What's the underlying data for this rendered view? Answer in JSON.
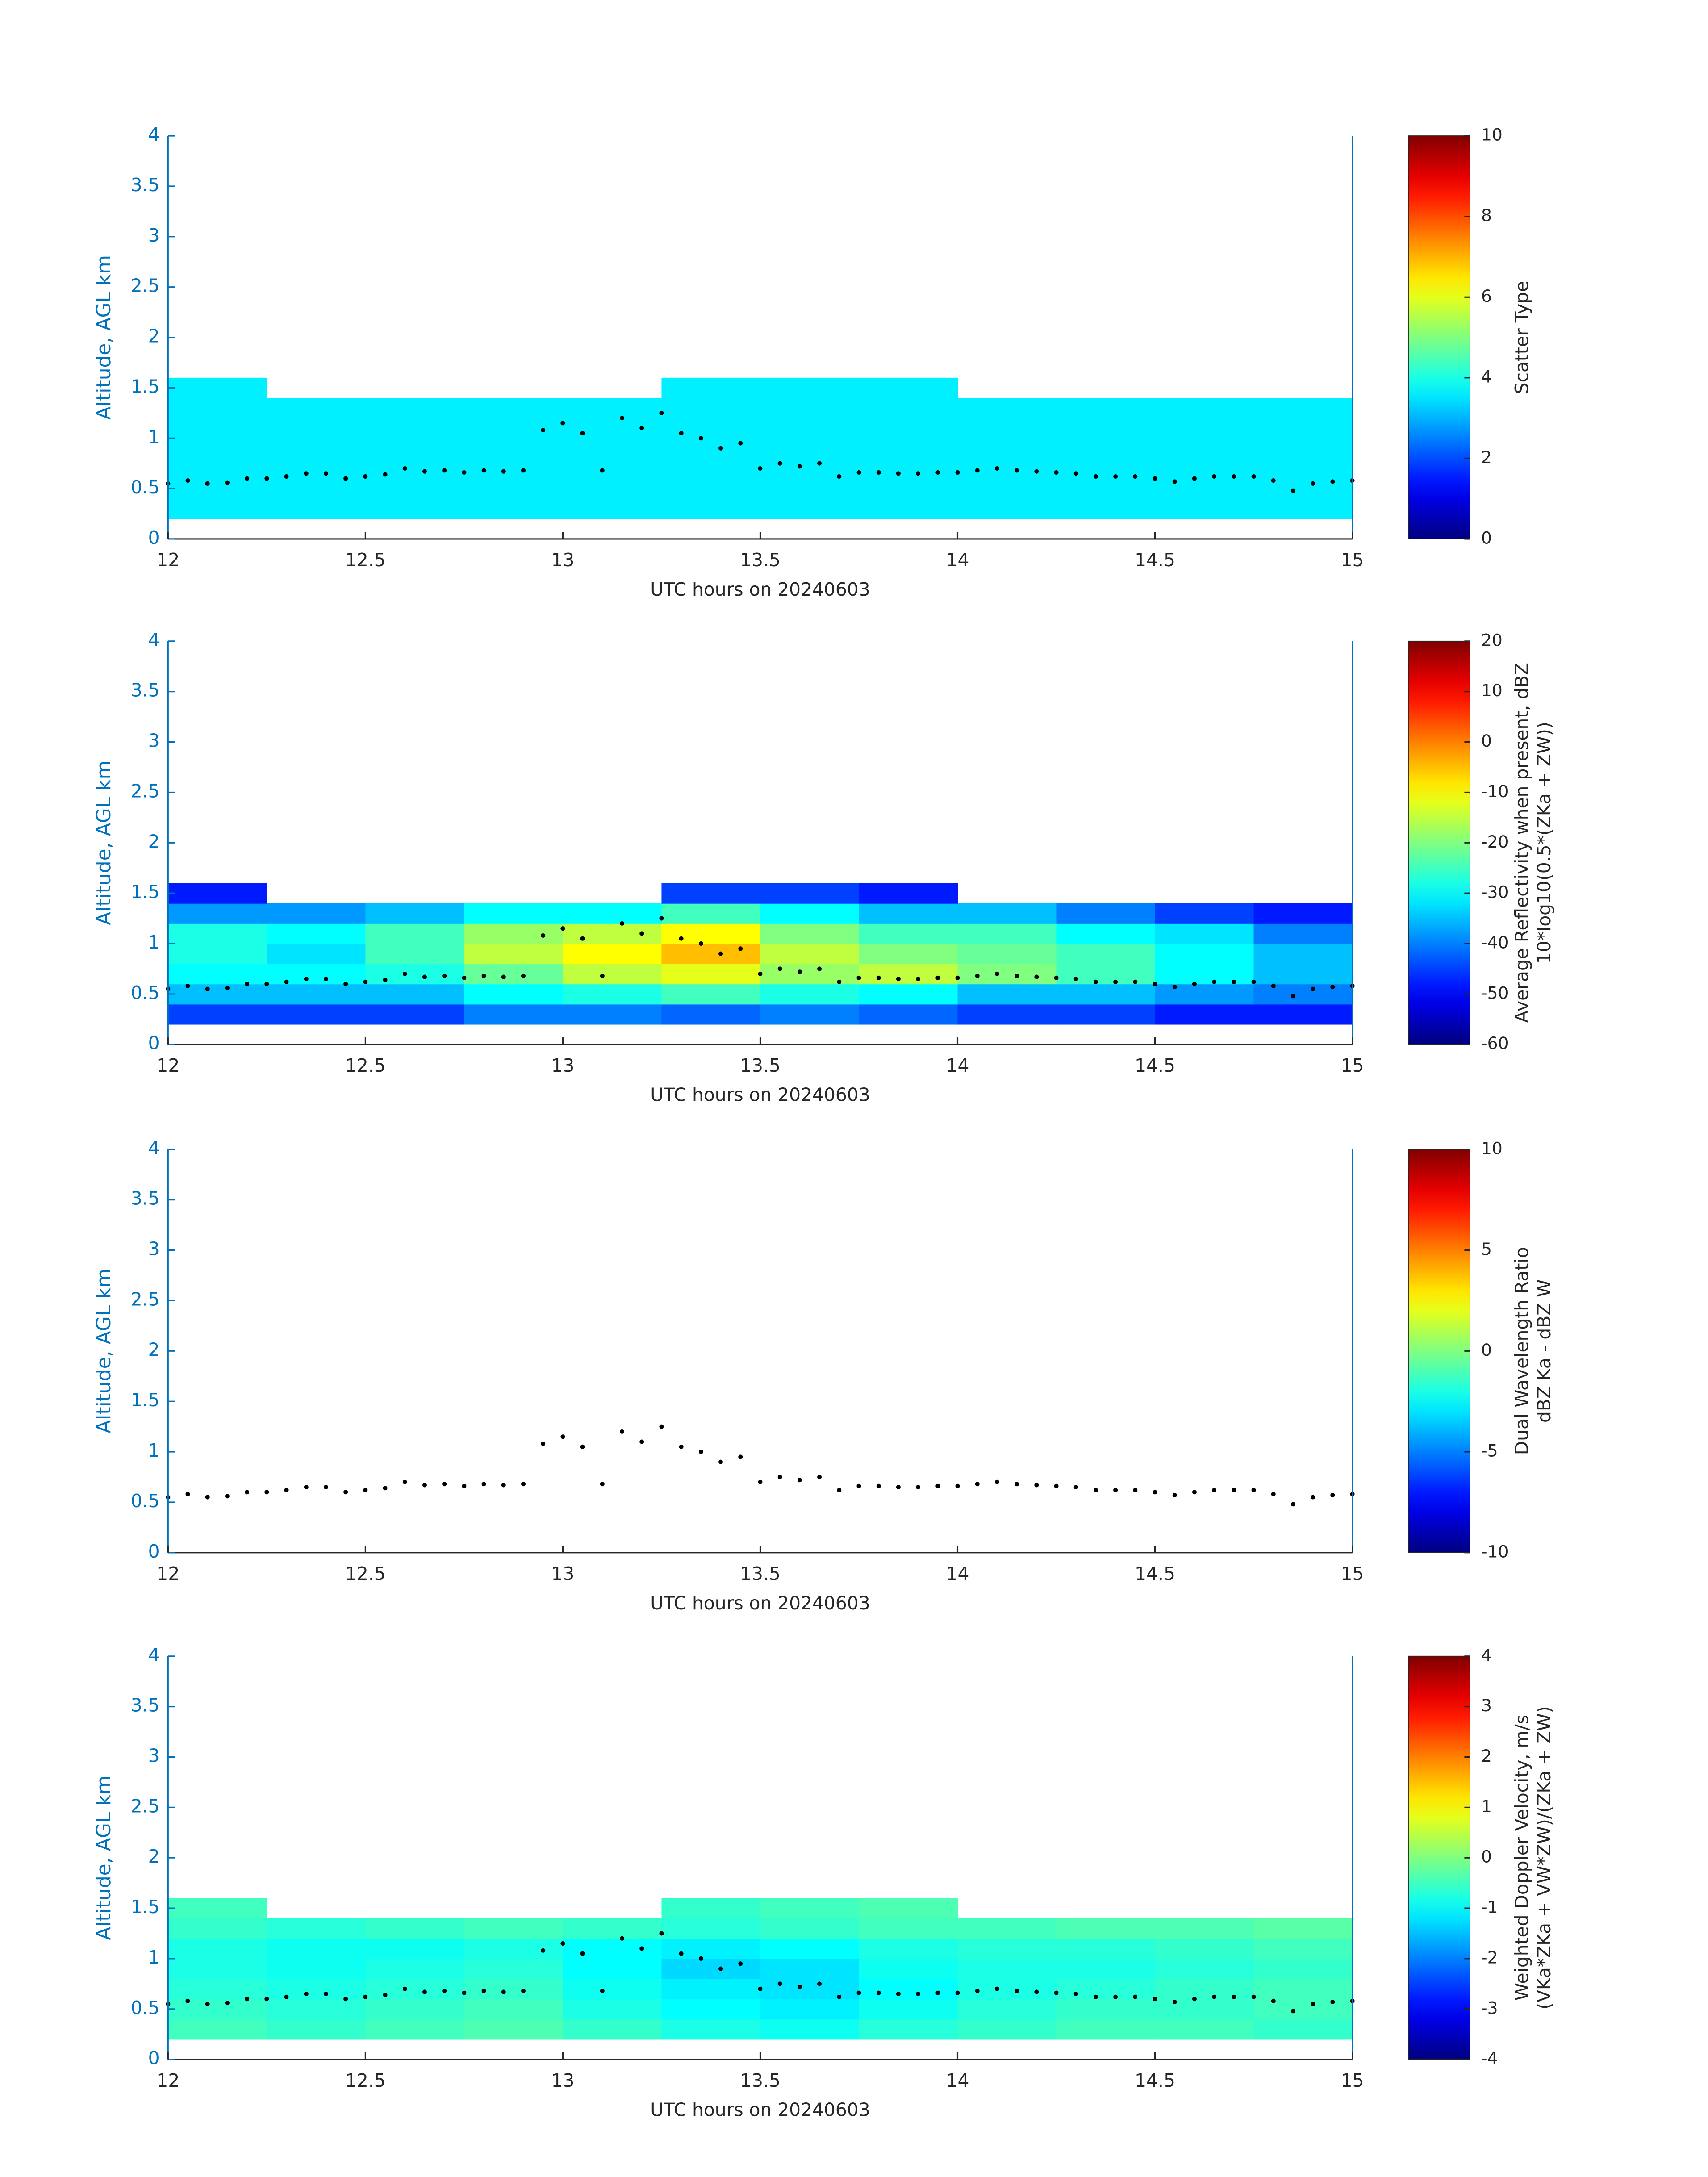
{
  "chart_data": [
    {
      "type": "heatmap",
      "xlabel": "UTC hours on 20240603",
      "ylabel": "Altitude, AGL km",
      "xlim": [
        12,
        15
      ],
      "xticks": [
        12,
        12.5,
        13,
        13.5,
        14,
        14.5,
        15
      ],
      "ylim": [
        0,
        4
      ],
      "yticks": [
        0,
        0.5,
        1,
        1.5,
        2,
        2.5,
        3,
        3.5,
        4
      ],
      "x_edges": [
        12,
        12.25,
        12.5,
        12.75,
        13,
        13.25,
        13.5,
        13.75,
        14,
        14.25,
        14.5,
        14.75,
        15
      ],
      "y_edges": [
        0.2,
        0.4,
        0.6,
        0.8,
        1.0,
        1.2,
        1.4,
        1.6
      ],
      "z": [
        [
          3.6,
          3.6,
          3.6,
          3.6,
          3.6,
          3.6,
          3.6,
          3.6,
          3.6,
          3.6,
          3.6,
          3.6
        ],
        [
          3.6,
          3.6,
          3.6,
          3.6,
          3.6,
          3.6,
          3.6,
          3.6,
          3.6,
          3.6,
          3.6,
          3.6
        ],
        [
          3.6,
          3.6,
          3.6,
          3.6,
          3.6,
          3.6,
          3.6,
          3.6,
          3.6,
          3.6,
          3.6,
          3.6
        ],
        [
          3.6,
          3.6,
          3.6,
          3.6,
          3.6,
          3.6,
          3.6,
          3.6,
          3.6,
          3.6,
          3.6,
          3.6
        ],
        [
          3.6,
          3.6,
          3.6,
          3.6,
          3.6,
          3.6,
          3.6,
          3.6,
          3.6,
          3.6,
          3.6,
          3.6
        ],
        [
          3.6,
          3.6,
          3.6,
          3.6,
          3.6,
          3.6,
          3.6,
          3.6,
          3.6,
          3.6,
          3.6,
          3.6
        ],
        [
          3.6,
          null,
          null,
          null,
          null,
          3.6,
          3.6,
          3.6,
          null,
          null,
          null,
          null
        ]
      ],
      "points": {
        "x": [
          12,
          12.05,
          12.1,
          12.15,
          12.2,
          12.25,
          12.3,
          12.35,
          12.4,
          12.45,
          12.5,
          12.55,
          12.6,
          12.65,
          12.7,
          12.75,
          12.8,
          12.85,
          12.9,
          12.95,
          13,
          13.05,
          13.1,
          13.15,
          13.2,
          13.25,
          13.3,
          13.35,
          13.4,
          13.45,
          13.5,
          13.55,
          13.6,
          13.65,
          13.7,
          13.75,
          13.8,
          13.85,
          13.9,
          13.95,
          14,
          14.05,
          14.1,
          14.15,
          14.2,
          14.25,
          14.3,
          14.35,
          14.4,
          14.45,
          14.5,
          14.55,
          14.6,
          14.65,
          14.7,
          14.75,
          14.8,
          14.85,
          14.9,
          14.95,
          15
        ],
        "values": [
          0.55,
          0.58,
          0.55,
          0.56,
          0.6,
          0.6,
          0.62,
          0.65,
          0.65,
          0.6,
          0.62,
          0.64,
          0.7,
          0.67,
          0.68,
          0.66,
          0.68,
          0.67,
          0.68,
          1.08,
          1.15,
          1.05,
          0.68,
          1.2,
          1.1,
          1.25,
          1.05,
          1.0,
          0.9,
          0.95,
          0.7,
          0.75,
          0.72,
          0.75,
          0.62,
          0.66,
          0.66,
          0.65,
          0.65,
          0.66,
          0.66,
          0.68,
          0.7,
          0.68,
          0.67,
          0.66,
          0.65,
          0.62,
          0.62,
          0.62,
          0.6,
          0.57,
          0.6,
          0.62,
          0.62,
          0.62,
          0.58,
          0.48,
          0.55,
          0.57,
          0.58
        ]
      },
      "colorbar": {
        "label": [
          "Scatter Type"
        ],
        "lim": [
          0,
          10
        ],
        "ticks": [
          0,
          2,
          4,
          6,
          8,
          10
        ]
      }
    },
    {
      "type": "heatmap",
      "xlabel": "UTC hours on 20240603",
      "ylabel": "Altitude, AGL km",
      "xlim": [
        12,
        15
      ],
      "xticks": [
        12,
        12.5,
        13,
        13.5,
        14,
        14.5,
        15
      ],
      "ylim": [
        0,
        4
      ],
      "yticks": [
        0,
        0.5,
        1,
        1.5,
        2,
        2.5,
        3,
        3.5,
        4
      ],
      "x_edges": [
        12,
        12.25,
        12.5,
        12.75,
        13,
        13.25,
        13.5,
        13.75,
        14,
        14.25,
        14.5,
        14.75,
        15
      ],
      "y_edges": [
        0.2,
        0.4,
        0.6,
        0.8,
        1.0,
        1.2,
        1.4,
        1.6
      ],
      "z": [
        [
          -45,
          -45,
          -45,
          -40,
          -40,
          -42,
          -40,
          -42,
          -45,
          -45,
          -48,
          -48
        ],
        [
          -35,
          -35,
          -35,
          -30,
          -28,
          -25,
          -28,
          -30,
          -35,
          -35,
          -38,
          -40
        ],
        [
          -30,
          -30,
          -28,
          -22,
          -15,
          -12,
          -18,
          -15,
          -20,
          -25,
          -30,
          -35
        ],
        [
          -28,
          -32,
          -25,
          -15,
          -10,
          -5,
          -15,
          -20,
          -22,
          -25,
          -30,
          -35
        ],
        [
          -28,
          -30,
          -25,
          -18,
          -15,
          -10,
          -20,
          -25,
          -25,
          -30,
          -32,
          -40
        ],
        [
          -38,
          -38,
          -35,
          -30,
          -30,
          -25,
          -30,
          -35,
          -35,
          -40,
          -45,
          -48
        ],
        [
          -48,
          null,
          null,
          null,
          null,
          -45,
          -45,
          -48,
          null,
          null,
          null,
          null
        ]
      ],
      "points": {
        "x": [
          12,
          12.05,
          12.1,
          12.15,
          12.2,
          12.25,
          12.3,
          12.35,
          12.4,
          12.45,
          12.5,
          12.55,
          12.6,
          12.65,
          12.7,
          12.75,
          12.8,
          12.85,
          12.9,
          12.95,
          13,
          13.05,
          13.1,
          13.15,
          13.2,
          13.25,
          13.3,
          13.35,
          13.4,
          13.45,
          13.5,
          13.55,
          13.6,
          13.65,
          13.7,
          13.75,
          13.8,
          13.85,
          13.9,
          13.95,
          14,
          14.05,
          14.1,
          14.15,
          14.2,
          14.25,
          14.3,
          14.35,
          14.4,
          14.45,
          14.5,
          14.55,
          14.6,
          14.65,
          14.7,
          14.75,
          14.8,
          14.85,
          14.9,
          14.95,
          15
        ],
        "values": [
          0.55,
          0.58,
          0.55,
          0.56,
          0.6,
          0.6,
          0.62,
          0.65,
          0.65,
          0.6,
          0.62,
          0.64,
          0.7,
          0.67,
          0.68,
          0.66,
          0.68,
          0.67,
          0.68,
          1.08,
          1.15,
          1.05,
          0.68,
          1.2,
          1.1,
          1.25,
          1.05,
          1.0,
          0.9,
          0.95,
          0.7,
          0.75,
          0.72,
          0.75,
          0.62,
          0.66,
          0.66,
          0.65,
          0.65,
          0.66,
          0.66,
          0.68,
          0.7,
          0.68,
          0.67,
          0.66,
          0.65,
          0.62,
          0.62,
          0.62,
          0.6,
          0.57,
          0.6,
          0.62,
          0.62,
          0.62,
          0.58,
          0.48,
          0.55,
          0.57,
          0.58
        ]
      },
      "colorbar": {
        "label": [
          "Average Reflectivity when present, dBZ",
          "10*log10(0.5*(ZKa + ZW))"
        ],
        "lim": [
          -60,
          20
        ],
        "ticks": [
          -60,
          -50,
          -40,
          -30,
          -20,
          -10,
          0,
          10,
          20
        ]
      }
    },
    {
      "type": "heatmap",
      "xlabel": "UTC hours on 20240603",
      "ylabel": "Altitude, AGL km",
      "xlim": [
        12,
        15
      ],
      "xticks": [
        12,
        12.5,
        13,
        13.5,
        14,
        14.5,
        15
      ],
      "ylim": [
        0,
        4
      ],
      "yticks": [
        0,
        0.5,
        1,
        1.5,
        2,
        2.5,
        3,
        3.5,
        4
      ],
      "points": {
        "x": [
          12,
          12.05,
          12.1,
          12.15,
          12.2,
          12.25,
          12.3,
          12.35,
          12.4,
          12.45,
          12.5,
          12.55,
          12.6,
          12.65,
          12.7,
          12.75,
          12.8,
          12.85,
          12.9,
          12.95,
          13,
          13.05,
          13.1,
          13.15,
          13.2,
          13.25,
          13.3,
          13.35,
          13.4,
          13.45,
          13.5,
          13.55,
          13.6,
          13.65,
          13.7,
          13.75,
          13.8,
          13.85,
          13.9,
          13.95,
          14,
          14.05,
          14.1,
          14.15,
          14.2,
          14.25,
          14.3,
          14.35,
          14.4,
          14.45,
          14.5,
          14.55,
          14.6,
          14.65,
          14.7,
          14.75,
          14.8,
          14.85,
          14.9,
          14.95,
          15
        ],
        "values": [
          0.55,
          0.58,
          0.55,
          0.56,
          0.6,
          0.6,
          0.62,
          0.65,
          0.65,
          0.6,
          0.62,
          0.64,
          0.7,
          0.67,
          0.68,
          0.66,
          0.68,
          0.67,
          0.68,
          1.08,
          1.15,
          1.05,
          0.68,
          1.2,
          1.1,
          1.25,
          1.05,
          1.0,
          0.9,
          0.95,
          0.7,
          0.75,
          0.72,
          0.75,
          0.62,
          0.66,
          0.66,
          0.65,
          0.65,
          0.66,
          0.66,
          0.68,
          0.7,
          0.68,
          0.67,
          0.66,
          0.65,
          0.62,
          0.62,
          0.62,
          0.6,
          0.57,
          0.6,
          0.62,
          0.62,
          0.62,
          0.58,
          0.48,
          0.55,
          0.57,
          0.58
        ]
      },
      "colorbar": {
        "label": [
          "Dual Wavelength Ratio",
          "dBZ Ka - dBZ W"
        ],
        "lim": [
          -10,
          10
        ],
        "ticks": [
          -10,
          -5,
          0,
          5,
          10
        ]
      }
    },
    {
      "type": "heatmap",
      "xlabel": "UTC hours on 20240603",
      "ylabel": "Altitude, AGL km",
      "xlim": [
        12,
        15
      ],
      "xticks": [
        12,
        12.5,
        13,
        13.5,
        14,
        14.5,
        15
      ],
      "ylim": [
        0,
        4
      ],
      "yticks": [
        0,
        0.5,
        1,
        1.5,
        2,
        2.5,
        3,
        3.5,
        4
      ],
      "x_edges": [
        12,
        12.25,
        12.5,
        12.75,
        13,
        13.25,
        13.5,
        13.75,
        14,
        14.25,
        14.5,
        14.75,
        15
      ],
      "y_edges": [
        0.2,
        0.4,
        0.6,
        0.8,
        1.0,
        1.2,
        1.4,
        1.6
      ],
      "z": [
        [
          -0.5,
          -0.6,
          -0.5,
          -0.4,
          -0.6,
          -0.8,
          -0.9,
          -0.7,
          -0.6,
          -0.5,
          -0.5,
          -0.6
        ],
        [
          -0.6,
          -0.7,
          -0.6,
          -0.5,
          -0.8,
          -1.0,
          -1.1,
          -0.9,
          -0.7,
          -0.6,
          -0.6,
          -0.5
        ],
        [
          -0.7,
          -0.8,
          -0.7,
          -0.6,
          -0.9,
          -1.1,
          -1.2,
          -1.0,
          -0.8,
          -0.7,
          -0.6,
          -0.5
        ],
        [
          -0.8,
          -0.9,
          -0.8,
          -0.7,
          -1.0,
          -1.3,
          -1.2,
          -0.9,
          -0.8,
          -0.8,
          -0.7,
          -0.6
        ],
        [
          -0.8,
          -0.9,
          -0.9,
          -0.8,
          -1.0,
          -1.1,
          -1.0,
          -0.8,
          -0.7,
          -0.7,
          -0.6,
          -0.5
        ],
        [
          -0.6,
          -0.7,
          -0.6,
          -0.5,
          -0.6,
          -0.7,
          -0.6,
          -0.5,
          -0.5,
          -0.4,
          -0.4,
          -0.3
        ],
        [
          -0.5,
          null,
          null,
          null,
          null,
          -0.6,
          -0.5,
          -0.4,
          null,
          null,
          null,
          null
        ]
      ],
      "points": {
        "x": [
          12,
          12.05,
          12.1,
          12.15,
          12.2,
          12.25,
          12.3,
          12.35,
          12.4,
          12.45,
          12.5,
          12.55,
          12.6,
          12.65,
          12.7,
          12.75,
          12.8,
          12.85,
          12.9,
          12.95,
          13,
          13.05,
          13.1,
          13.15,
          13.2,
          13.25,
          13.3,
          13.35,
          13.4,
          13.45,
          13.5,
          13.55,
          13.6,
          13.65,
          13.7,
          13.75,
          13.8,
          13.85,
          13.9,
          13.95,
          14,
          14.05,
          14.1,
          14.15,
          14.2,
          14.25,
          14.3,
          14.35,
          14.4,
          14.45,
          14.5,
          14.55,
          14.6,
          14.65,
          14.7,
          14.75,
          14.8,
          14.85,
          14.9,
          14.95,
          15
        ],
        "values": [
          0.55,
          0.58,
          0.55,
          0.56,
          0.6,
          0.6,
          0.62,
          0.65,
          0.65,
          0.6,
          0.62,
          0.64,
          0.7,
          0.67,
          0.68,
          0.66,
          0.68,
          0.67,
          0.68,
          1.08,
          1.15,
          1.05,
          0.68,
          1.2,
          1.1,
          1.25,
          1.05,
          1.0,
          0.9,
          0.95,
          0.7,
          0.75,
          0.72,
          0.75,
          0.62,
          0.66,
          0.66,
          0.65,
          0.65,
          0.66,
          0.66,
          0.68,
          0.7,
          0.68,
          0.67,
          0.66,
          0.65,
          0.62,
          0.62,
          0.62,
          0.6,
          0.57,
          0.6,
          0.62,
          0.62,
          0.62,
          0.58,
          0.48,
          0.55,
          0.57,
          0.58
        ]
      },
      "colorbar": {
        "label": [
          "Weighted Doppler Velocity, m/s",
          "(VKa*ZKa + VW*ZW)/(ZKa + ZW)"
        ],
        "lim": [
          -4,
          4
        ],
        "ticks": [
          -4,
          -3,
          -2,
          -1,
          0,
          1,
          2,
          3,
          4
        ]
      }
    }
  ]
}
